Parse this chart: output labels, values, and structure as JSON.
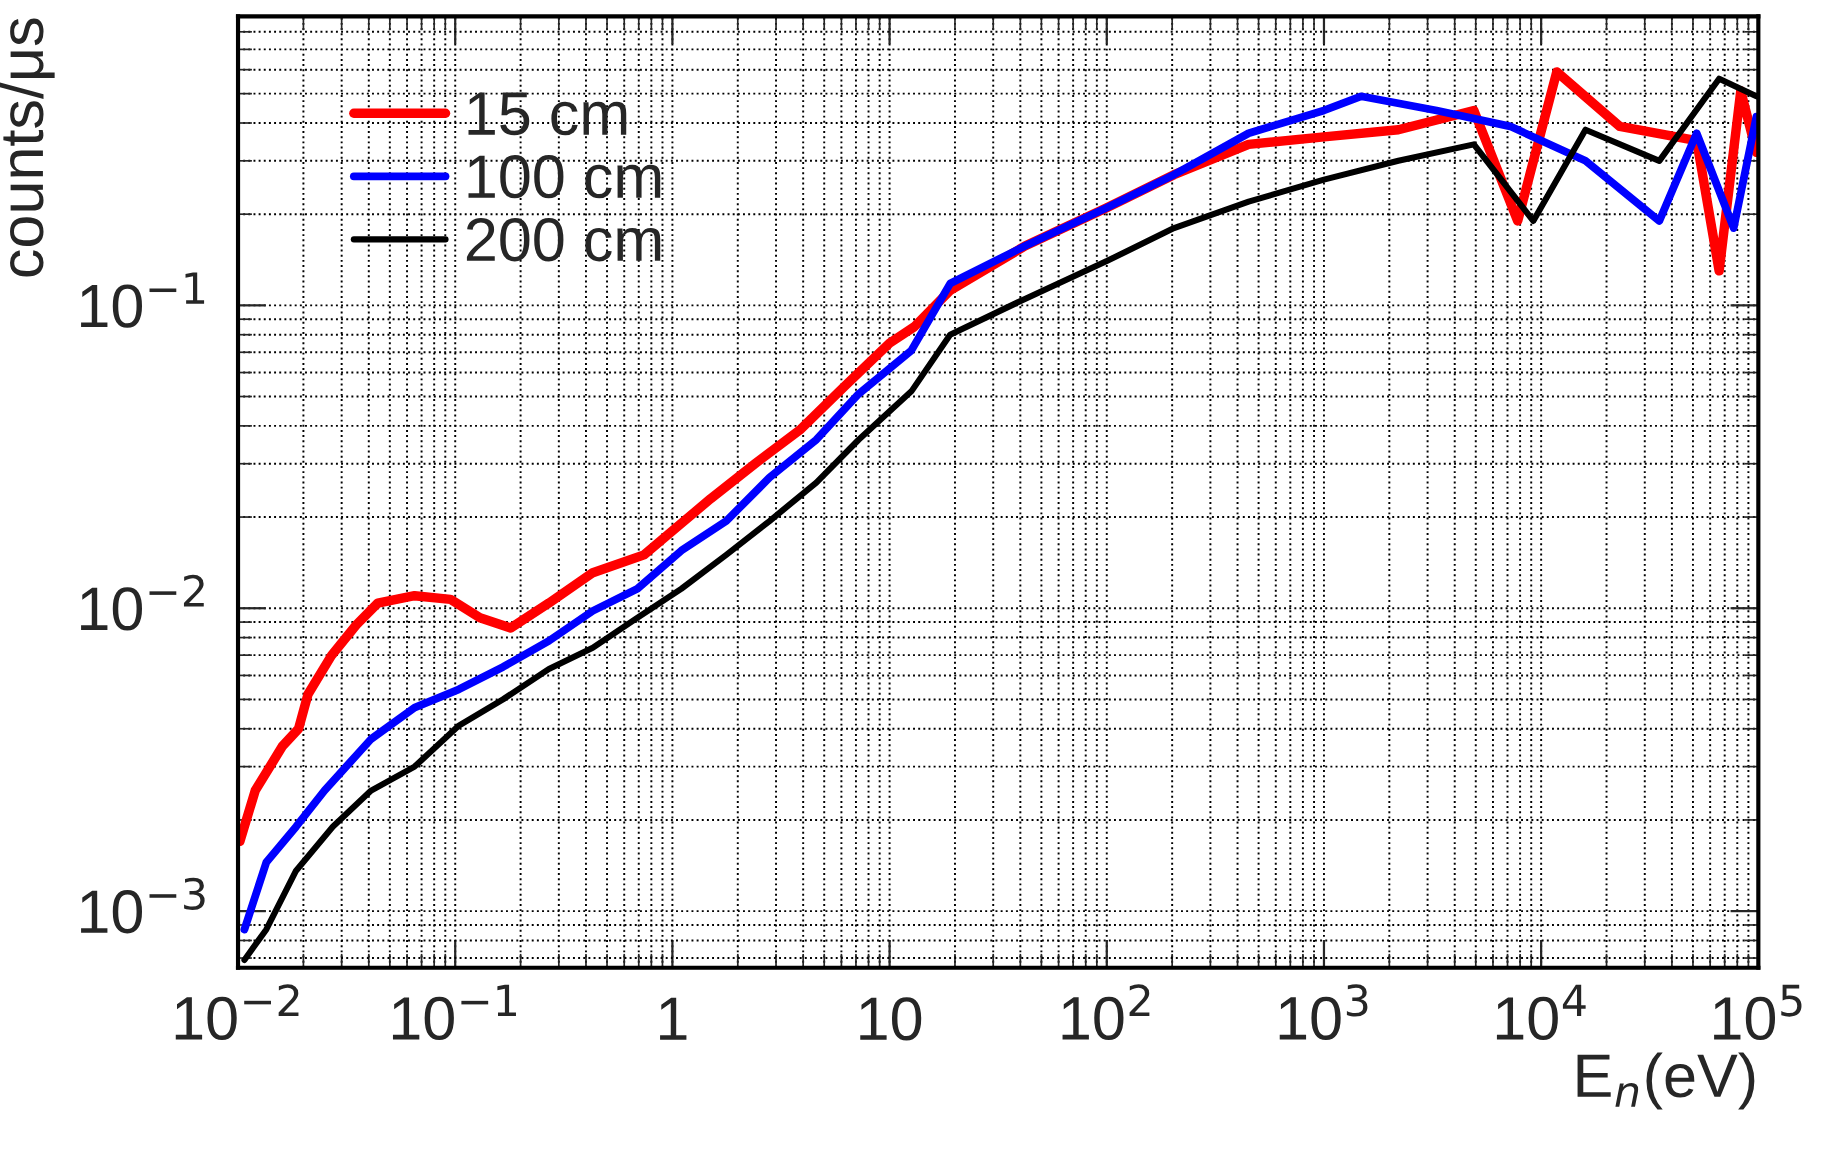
{
  "chart_data": {
    "type": "line",
    "xlabel": "E$_{n}$(eV)",
    "ylabel": "counts/μs",
    "log": "xy",
    "grid": true,
    "legend": "top left",
    "xlim": [
      0.01,
      100000
    ],
    "ylim": [
      0.00065,
      0.9
    ],
    "xticks": [
      {
        "value": 0.01,
        "label": "10$^{−2}$"
      },
      {
        "value": 0.1,
        "label": "10$^{−1}$"
      },
      1,
      10,
      {
        "value": 100,
        "label": "10$^{2}$"
      },
      {
        "value": 1000,
        "label": "10$^{3}$"
      },
      {
        "value": 10000,
        "label": "10$^{4}$"
      },
      {
        "value": 100000,
        "label": "10$^{5}$"
      }
    ],
    "yticks": [
      {
        "value": 0.001,
        "label": "10$^{−3}$"
      },
      {
        "value": 0.01,
        "label": "10$^{−2}$"
      },
      {
        "value": 0.1,
        "label": "10$^{−1}$"
      }
    ],
    "series": [
      {
        "name": "15 cm",
        "color": "#ff0000",
        "x": [
          0.0102,
          0.012,
          0.016,
          0.019,
          0.021,
          0.027,
          0.035,
          0.044,
          0.065,
          0.095,
          0.13,
          0.18,
          0.27,
          0.43,
          0.74,
          1,
          1.5,
          2.4,
          3.9,
          6.2,
          10,
          13,
          19,
          42,
          100,
          204,
          450,
          1000,
          2200,
          4900,
          7800,
          11800,
          23000,
          52000,
          66000,
          83000,
          98000
        ],
        "values": [
          0.0017,
          0.0025,
          0.0035,
          0.004,
          0.0052,
          0.007,
          0.0088,
          0.0104,
          0.011,
          0.0107,
          0.0093,
          0.0086,
          0.0104,
          0.0131,
          0.015,
          0.018,
          0.023,
          0.03,
          0.039,
          0.054,
          0.075,
          0.085,
          0.112,
          0.157,
          0.21,
          0.27,
          0.34,
          0.36,
          0.38,
          0.44,
          0.19,
          0.59,
          0.39,
          0.35,
          0.13,
          0.51,
          0.32
        ]
      },
      {
        "name": "100 cm",
        "color": "#0000ff",
        "x": [
          0.0107,
          0.0135,
          0.0185,
          0.025,
          0.041,
          0.065,
          0.104,
          0.166,
          0.27,
          0.43,
          0.69,
          1.1,
          1.77,
          2.8,
          4.6,
          7.2,
          12.6,
          19,
          42,
          100,
          204,
          450,
          1000,
          1480,
          3300,
          7200,
          16000,
          35000,
          52000,
          77000,
          98000
        ],
        "values": [
          0.00087,
          0.00145,
          0.0019,
          0.0025,
          0.0037,
          0.0047,
          0.0054,
          0.0064,
          0.0078,
          0.0098,
          0.0116,
          0.0155,
          0.0194,
          0.027,
          0.036,
          0.051,
          0.071,
          0.118,
          0.157,
          0.21,
          0.27,
          0.37,
          0.44,
          0.49,
          0.44,
          0.39,
          0.3,
          0.19,
          0.37,
          0.18,
          0.42
        ]
      },
      {
        "name": "200 cm",
        "color": "#000000",
        "x": [
          0.0107,
          0.0135,
          0.0185,
          0.0273,
          0.041,
          0.065,
          0.104,
          0.166,
          0.27,
          0.43,
          0.69,
          1.1,
          1.77,
          2.8,
          4.6,
          7.2,
          12.6,
          19,
          42,
          100,
          204,
          450,
          1000,
          2200,
          4900,
          9200,
          16000,
          35000,
          66000,
          98000
        ],
        "values": [
          0.00069,
          0.00087,
          0.00136,
          0.0019,
          0.0025,
          0.003,
          0.0041,
          0.005,
          0.0063,
          0.0074,
          0.0093,
          0.0116,
          0.015,
          0.0194,
          0.026,
          0.036,
          0.052,
          0.08,
          0.105,
          0.14,
          0.18,
          0.22,
          0.26,
          0.3,
          0.34,
          0.19,
          0.38,
          0.3,
          0.56,
          0.49
        ]
      }
    ]
  }
}
